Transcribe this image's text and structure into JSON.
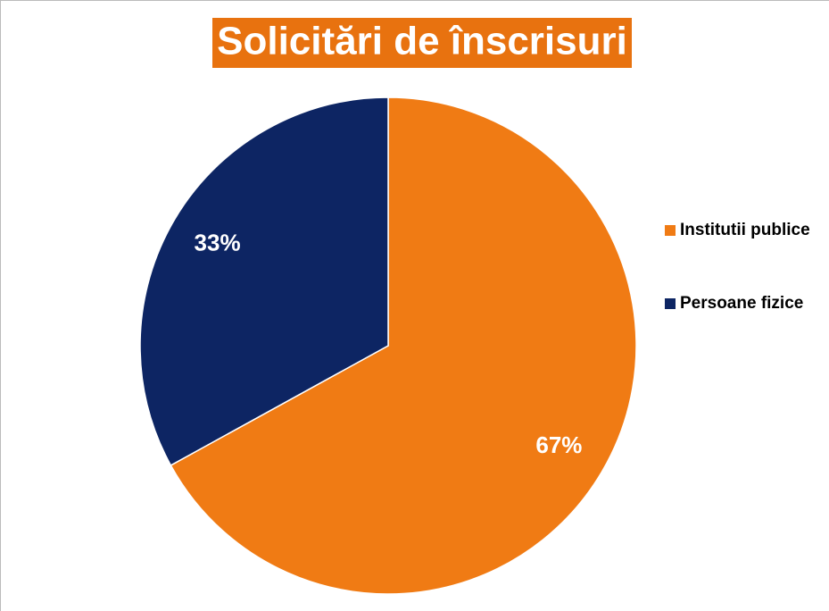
{
  "chart_data": {
    "type": "pie",
    "title": "Solicitări de înscrisuri",
    "categories": [
      "Institutii publice",
      "Persoane fizice"
    ],
    "values": [
      67,
      33
    ],
    "value_labels": [
      "67%",
      "33%"
    ],
    "colors": [
      "#f07b14",
      "#0d2563"
    ],
    "legend": "right"
  }
}
